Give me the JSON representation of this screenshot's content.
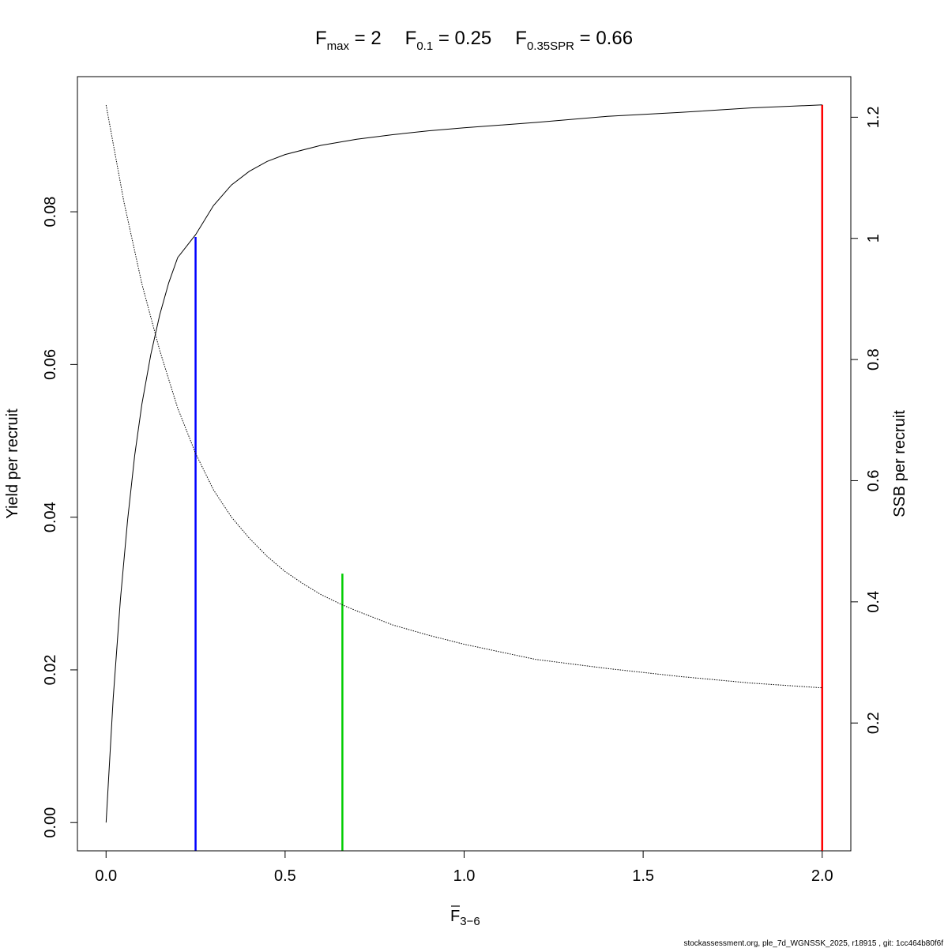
{
  "chart_data": {
    "type": "line",
    "title": {
      "parts": [
        {
          "base": "F",
          "sub": "max",
          "rest": " = 2"
        },
        {
          "base": "F",
          "sub": "0.1",
          "rest": " = 0.25"
        },
        {
          "base": "F",
          "sub": "0.35SPR",
          "rest": " = 0.66"
        }
      ]
    },
    "xlabel": {
      "base": "F",
      "sub": "3−6"
    },
    "ylabel_left": "Yield per recruit",
    "ylabel_right": "SSB per recruit",
    "xlim": [
      -0.08,
      2.08
    ],
    "ylim_left": [
      -0.0037,
      0.0977
    ],
    "ylim_right": [
      -0.011,
      1.267
    ],
    "x_ticks": [
      0,
      0.5,
      1,
      1.5,
      2
    ],
    "x_tick_labels": [
      "0.0",
      "0.5",
      "1.0",
      "1.5",
      "2.0"
    ],
    "y_left_ticks": [
      0,
      0.02,
      0.04,
      0.06,
      0.08
    ],
    "y_left_tick_labels": [
      "0.00",
      "0.02",
      "0.04",
      "0.06",
      "0.08"
    ],
    "y_right_ticks": [
      0.2,
      0.4,
      0.6,
      0.8,
      1,
      1.2
    ],
    "y_right_tick_labels": [
      "0.2",
      "0.4",
      "0.6",
      "0.8",
      "1",
      "1.2"
    ],
    "grid": false,
    "series": [
      {
        "axis": "left",
        "style": "solid",
        "color": "#000000",
        "x": [
          0,
          0.02,
          0.04,
          0.06,
          0.08,
          0.1,
          0.125,
          0.15,
          0.175,
          0.2,
          0.25,
          0.3,
          0.35,
          0.4,
          0.45,
          0.5,
          0.6,
          0.7,
          0.8,
          0.9,
          1.0,
          1.2,
          1.4,
          1.6,
          1.8,
          2.0
        ],
        "y": [
          0.0,
          0.0163,
          0.0292,
          0.0396,
          0.0481,
          0.0548,
          0.0613,
          0.0665,
          0.0707,
          0.074,
          0.077,
          0.0808,
          0.0835,
          0.0853,
          0.0866,
          0.0875,
          0.0887,
          0.0895,
          0.0901,
          0.0906,
          0.091,
          0.0917,
          0.0925,
          0.093,
          0.0936,
          0.094
        ]
      },
      {
        "axis": "right",
        "style": "dotted",
        "color": "#000000",
        "x": [
          0,
          0.05,
          0.1,
          0.15,
          0.2,
          0.25,
          0.3,
          0.35,
          0.4,
          0.45,
          0.5,
          0.55,
          0.6,
          0.66,
          0.7,
          0.8,
          0.9,
          1.0,
          1.2,
          1.4,
          1.6,
          1.8,
          2.0
        ],
        "y": [
          1.22,
          1.06,
          0.925,
          0.815,
          0.72,
          0.645,
          0.585,
          0.54,
          0.505,
          0.475,
          0.45,
          0.43,
          0.412,
          0.395,
          0.385,
          0.362,
          0.345,
          0.33,
          0.305,
          0.29,
          0.277,
          0.266,
          0.258
        ]
      }
    ],
    "reference_lines": [
      {
        "name": "Fmax",
        "x": 2.0,
        "y_top": 0.094,
        "color": "#ff0000"
      },
      {
        "name": "F0.1",
        "x": 0.25,
        "y_top": 0.0767,
        "color": "#0000ff"
      },
      {
        "name": "F0.35SPR",
        "x": 0.66,
        "y_top": 0.0326,
        "color": "#00cc00"
      }
    ]
  },
  "footer": "stockassessment.org, ple_7d_WGNSSK_2025, r18915 , git: 1cc464b80f6f"
}
